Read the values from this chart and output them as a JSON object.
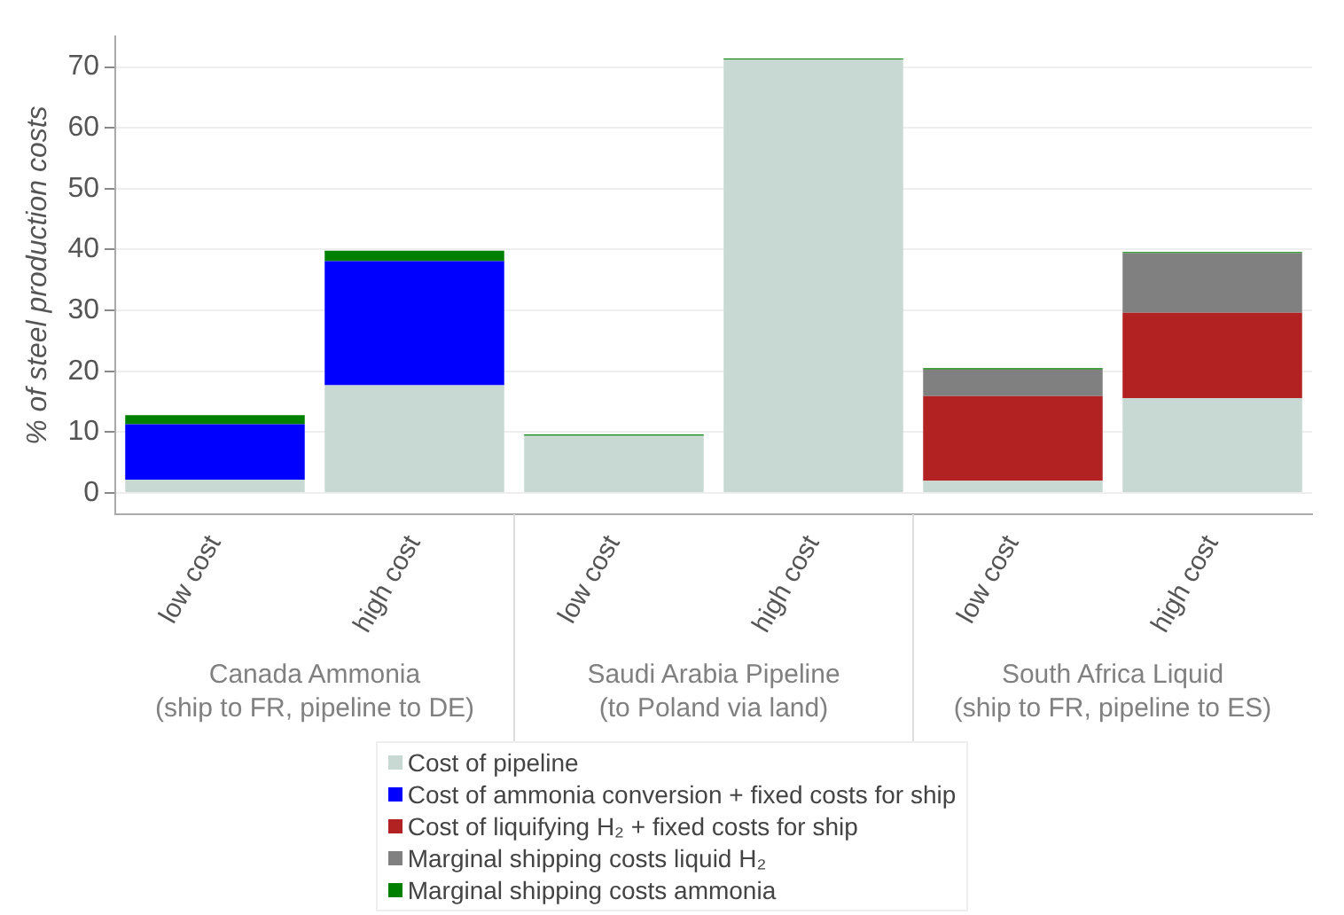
{
  "chart_data": {
    "type": "bar",
    "stacked": true,
    "ylabel": "% of steel production costs",
    "categories": [
      "low cost",
      "high cost",
      "low cost",
      "high cost",
      "low cost",
      "high cost"
    ],
    "annotations": [
      "Canada Ammonia\n(ship to FR, pipeline to DE)",
      "Saudi Arabia Pipeline\n(to Poland via land)",
      "South Africa Liquid\n(ship to FR, pipeline to ES)"
    ],
    "series": [
      {
        "name": "Cost of pipeline",
        "color": "#c8d9d3",
        "values": [
          2.2,
          17.7,
          9.4,
          71.2,
          2.0,
          15.6
        ]
      },
      {
        "name": "Cost of ammonia conversion + fixed costs for ship",
        "color": "#0000ff",
        "values": [
          9.1,
          20.4,
          0,
          0,
          0,
          0
        ]
      },
      {
        "name": "Cost of liquifying H₂ + fixed costs for ship",
        "color": "#b22222",
        "values": [
          0,
          0,
          0,
          0,
          13.9,
          14.0
        ]
      },
      {
        "name": "Marginal shipping costs liquid H₂",
        "color": "#808080",
        "values": [
          0,
          0,
          0,
          0,
          4.4,
          9.8
        ]
      },
      {
        "name": "Marginal shipping costs ammonia",
        "color": "#008000",
        "values": [
          1.5,
          1.7,
          0.2,
          0.2,
          0.2,
          0.2
        ]
      }
    ],
    "ylim": [
      -3.5,
      75
    ],
    "yticks": [
      0,
      10,
      20,
      30,
      40,
      50,
      60,
      70
    ],
    "grid": "y",
    "legend": "bottom"
  }
}
